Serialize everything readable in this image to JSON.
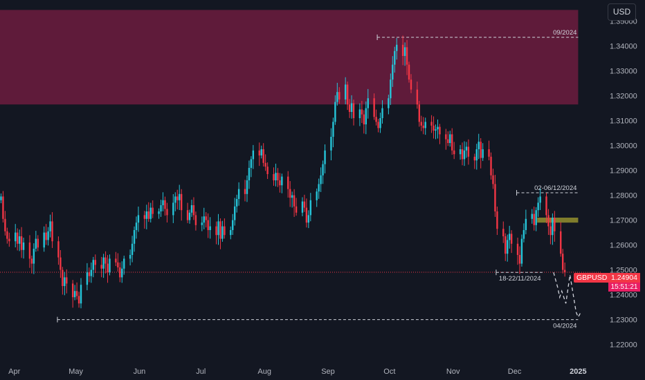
{
  "currency_button": "USD",
  "price_tag": {
    "symbol": "GBPUSD",
    "price": "1.24904",
    "countdown": "15:51:21",
    "color": "#f23645"
  },
  "colors": {
    "bull": "#26c6da",
    "bear": "#f23645",
    "zone": "#5f1b3a",
    "small_zone": "#807d2c"
  },
  "chart_data": {
    "type": "candlestick",
    "symbol": "GBPUSD",
    "y_ticks": [
      "1.35000",
      "1.34000",
      "1.33000",
      "1.32000",
      "1.31000",
      "1.30000",
      "1.29000",
      "1.28000",
      "1.27000",
      "1.26000",
      "1.25000",
      "1.24000",
      "1.23000",
      "1.22000"
    ],
    "x_ticks": [
      {
        "label": "Apr",
        "date": "2024-04-01"
      },
      {
        "label": "May",
        "date": "2024-05-01"
      },
      {
        "label": "Jun",
        "date": "2024-06-01"
      },
      {
        "label": "Jul",
        "date": "2024-07-01"
      },
      {
        "label": "Aug",
        "date": "2024-08-01"
      },
      {
        "label": "Sep",
        "date": "2024-09-01"
      },
      {
        "label": "Oct",
        "date": "2024-10-01"
      },
      {
        "label": "Nov",
        "date": "2024-11-01"
      },
      {
        "label": "Dec",
        "date": "2024-12-01"
      },
      {
        "label": "2025",
        "date": "2025-01-01",
        "bold": true
      }
    ],
    "x_range": [
      "2024-03-25",
      "2025-01-12"
    ],
    "y_range": [
      1.2135,
      1.3585
    ],
    "closes": [
      1.2795,
      1.2705,
      1.2655,
      1.2625,
      1.2615,
      1.265,
      1.2605,
      1.2635,
      1.258,
      1.261,
      1.2545,
      1.2525,
      1.2585,
      1.2625,
      1.259,
      1.265,
      1.262,
      1.2655,
      1.2695,
      1.2615,
      1.255,
      1.25,
      1.2435,
      1.247,
      1.2445,
      1.239,
      1.2415,
      1.2395,
      1.2365,
      1.244,
      1.249,
      1.2475,
      1.25,
      1.254,
      1.252,
      1.2505,
      1.255,
      1.2525,
      1.249,
      1.2545,
      1.253,
      1.251,
      1.247,
      1.2505,
      1.2545,
      1.256,
      1.2605,
      1.266,
      1.269,
      1.272,
      1.2705,
      1.2735,
      1.2705,
      1.275,
      1.2725,
      1.2735,
      1.276,
      1.278,
      1.2745,
      1.272,
      1.277,
      1.2795,
      1.278,
      1.2805,
      1.274,
      1.27,
      1.273,
      1.276,
      1.272,
      1.268,
      1.269,
      1.2715,
      1.27,
      1.266,
      1.2675,
      1.264,
      1.2695,
      1.2625,
      1.2675,
      1.264,
      1.266,
      1.27,
      1.2755,
      1.2785,
      1.2825,
      1.2805,
      1.286,
      1.291,
      1.2945,
      1.298,
      1.296,
      1.2985,
      1.293,
      1.2915,
      1.2885,
      1.286,
      1.289,
      1.286,
      1.284,
      1.2875,
      1.2825,
      1.279,
      1.28,
      1.2755,
      1.273,
      1.2775,
      1.275,
      1.269,
      1.272,
      1.278,
      1.2815,
      1.2845,
      1.288,
      1.2925,
      1.298,
      1.3035,
      1.3095,
      1.3175,
      1.3215,
      1.3185,
      1.3245,
      1.3165,
      1.3135,
      1.317,
      1.311,
      1.3145,
      1.3125,
      1.3085,
      1.315,
      1.319,
      1.3115,
      1.3095,
      1.307,
      1.311,
      1.315,
      1.319,
      1.3265,
      1.3325,
      1.338,
      1.3405,
      1.336,
      1.3395,
      1.3325,
      1.3265,
      1.3225,
      1.3165,
      1.3095,
      1.308,
      1.307,
      1.3095,
      1.308,
      1.306,
      1.3065,
      1.3075,
      1.3045,
      1.3025,
      1.301,
      1.3045,
      1.298,
      1.2965,
      1.2985,
      1.2945,
      1.298,
      1.2995,
      1.2955,
      1.294,
      1.2985,
      1.3015,
      1.295,
      1.2985,
      1.2955,
      1.288,
      1.2845,
      1.2735,
      1.2665,
      1.2635,
      1.2565,
      1.262,
      1.2645,
      1.2605,
      1.256,
      1.2525,
      1.2625,
      1.266,
      1.2705,
      1.2725,
      1.268,
      1.274,
      1.277,
      1.2795,
      1.272,
      1.2675,
      1.264,
      1.271,
      1.2655,
      1.2565,
      1.25,
      1.249
    ],
    "zones": [
      {
        "from": "2024-03-25",
        "to": "2025-01-01",
        "high": 1.3545,
        "low": 1.3165,
        "color": "#5f1b3a"
      },
      {
        "from": "2024-12-12",
        "to": "2025-01-01",
        "high": 1.271,
        "low": 1.269,
        "color": "#807d2c"
      }
    ],
    "levels": [
      {
        "label": "09/2024",
        "date_from": "2024-09-25",
        "date_to": "2025-01-01",
        "price": 1.3435,
        "label_side": "above"
      },
      {
        "label": "02-06/12/2024",
        "date_from": "2024-12-02",
        "date_to": "2025-01-01",
        "price": 1.281,
        "label_side": "above"
      },
      {
        "label": "18-22/11/2024",
        "date_from": "2024-11-22",
        "date_to": "2024-12-15",
        "price": 1.249,
        "label_side": "below"
      },
      {
        "label": "04/2024",
        "date_from": "2024-04-22",
        "date_to": "2025-01-01",
        "price": 1.23,
        "label_side": "below"
      }
    ],
    "current_price": 1.24904,
    "projection": [
      [
        "2024-12-20",
        1.249
      ],
      [
        "2024-12-22",
        1.243
      ],
      [
        "2024-12-23",
        1.239
      ],
      [
        "2024-12-24",
        1.2415
      ],
      [
        "2024-12-26",
        1.2365
      ],
      [
        "2024-12-28",
        1.248
      ],
      [
        "2024-12-30",
        1.238
      ],
      [
        "2024-12-31",
        1.233
      ],
      [
        "2025-01-01",
        1.231
      ],
      [
        "2025-01-02",
        1.2325
      ]
    ]
  }
}
